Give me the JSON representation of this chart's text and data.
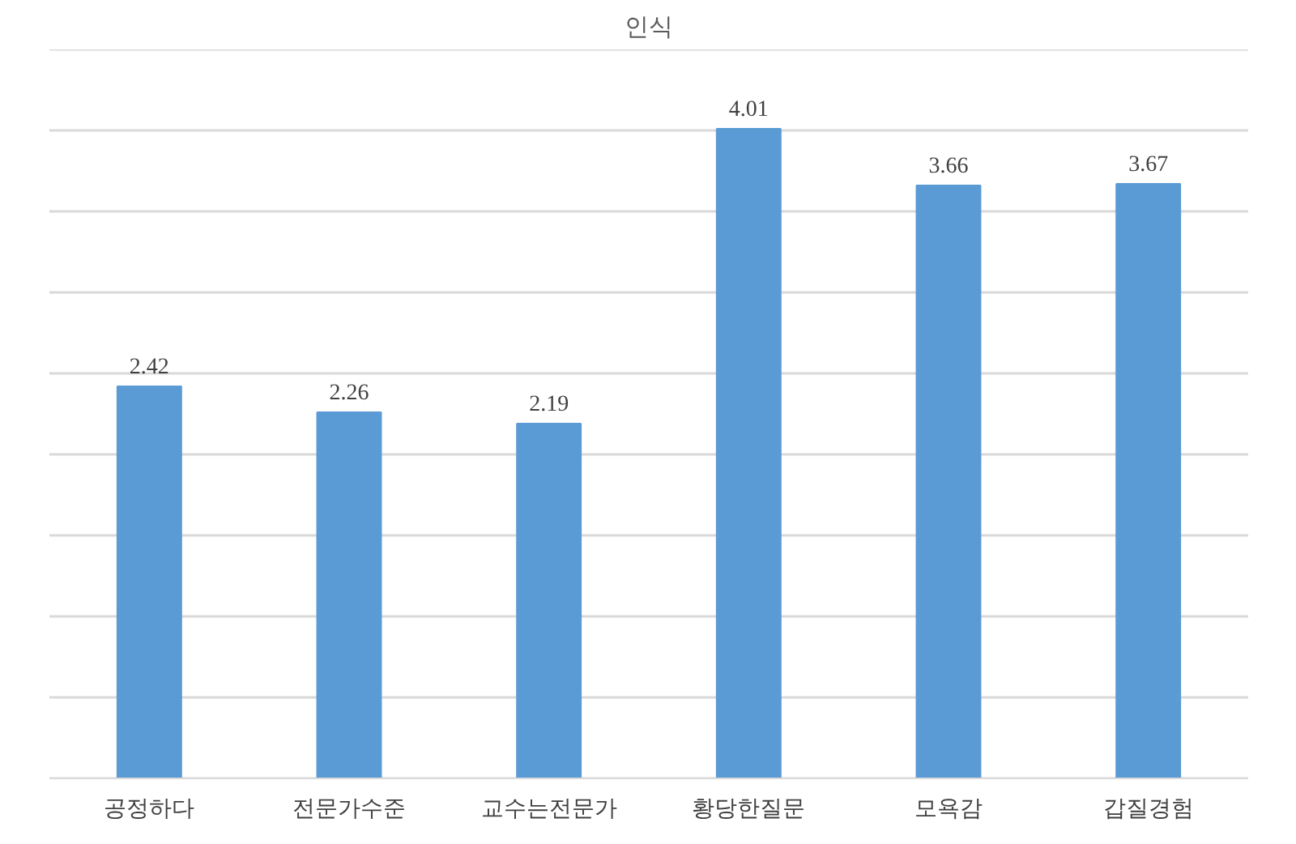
{
  "chart_data": {
    "type": "bar",
    "title": "인식",
    "categories": [
      "공정하다",
      "전문가수준",
      "교수는전문가",
      "황당한질문",
      "모욕감",
      "갑질경험"
    ],
    "values": [
      2.42,
      2.26,
      2.19,
      4.01,
      3.66,
      3.67
    ],
    "color": "#5b9bd5",
    "ylim": [
      0,
      4.5
    ],
    "yticks": [
      {
        "value": 0,
        "label": null
      },
      {
        "value": 0.5,
        "label": null
      },
      {
        "value": 1,
        "label": null
      },
      {
        "value": 1.5,
        "label": null
      },
      {
        "value": 2,
        "label": null
      },
      {
        "value": 2.5,
        "label": null
      },
      {
        "value": 3,
        "label": null
      },
      {
        "value": 3.5,
        "label": null
      },
      {
        "value": 4,
        "label": null
      },
      {
        "value": 4.5,
        "label": null
      }
    ],
    "tick_labels": "x",
    "grid": "y",
    "data_labels": true
  }
}
